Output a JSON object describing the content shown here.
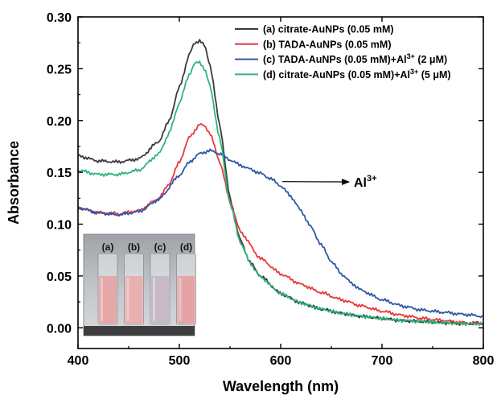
{
  "chart_data": {
    "type": "line",
    "xlabel": "Wavelength (nm)",
    "ylabel": "Absorbance",
    "xlim": [
      400,
      800
    ],
    "ylim": [
      -0.02,
      0.3
    ],
    "xticks": [
      400,
      500,
      600,
      700,
      800
    ],
    "yticks": [
      0.0,
      0.05,
      0.1,
      0.15,
      0.2,
      0.25,
      0.3
    ],
    "xtick_labels": [
      "400",
      "500",
      "600",
      "700",
      "800"
    ],
    "ytick_labels": [
      "0.00",
      "0.05",
      "0.10",
      "0.15",
      "0.20",
      "0.25",
      "0.30"
    ],
    "legend_position": "top-right",
    "series": [
      {
        "name": "(a) citrate-AuNPs (0.05 mM)",
        "color": "#3a3a3a",
        "x": [
          400,
          420,
          440,
          460,
          480,
          490,
          500,
          510,
          515,
          520,
          525,
          530,
          540,
          550,
          560,
          570,
          580,
          600,
          620,
          640,
          660,
          680,
          700,
          720,
          740,
          760,
          780,
          800
        ],
        "y": [
          0.166,
          0.161,
          0.16,
          0.163,
          0.18,
          0.2,
          0.232,
          0.264,
          0.275,
          0.277,
          0.272,
          0.255,
          0.195,
          0.125,
          0.085,
          0.063,
          0.05,
          0.033,
          0.024,
          0.018,
          0.014,
          0.011,
          0.009,
          0.007,
          0.006,
          0.005,
          0.004,
          0.004
        ]
      },
      {
        "name": "(b) TADA-AuNPs (0.05 mM)",
        "color": "#e8383d",
        "x": [
          400,
          420,
          440,
          460,
          480,
          490,
          500,
          510,
          520,
          525,
          530,
          540,
          550,
          560,
          580,
          600,
          620,
          640,
          660,
          680,
          700,
          720,
          740,
          760,
          780,
          800
        ],
        "y": [
          0.116,
          0.111,
          0.11,
          0.113,
          0.125,
          0.139,
          0.16,
          0.184,
          0.196,
          0.195,
          0.188,
          0.16,
          0.122,
          0.093,
          0.067,
          0.052,
          0.042,
          0.034,
          0.027,
          0.021,
          0.016,
          0.012,
          0.009,
          0.007,
          0.005,
          0.004
        ]
      },
      {
        "name": "(c) TADA-AuNPs (0.05 mM)+Al3+ (2 μM)",
        "legend_main": "(c) TADA-AuNPs (0.05 mM)+Al",
        "legend_sup": "3+",
        "legend_tail": " (2 μM)",
        "color": "#2f56a8",
        "x": [
          400,
          420,
          440,
          460,
          480,
          500,
          510,
          520,
          530,
          540,
          550,
          560,
          570,
          580,
          590,
          600,
          610,
          620,
          630,
          640,
          650,
          660,
          670,
          680,
          700,
          720,
          740,
          760,
          780,
          800
        ],
        "y": [
          0.116,
          0.111,
          0.109,
          0.112,
          0.124,
          0.147,
          0.16,
          0.168,
          0.171,
          0.168,
          0.162,
          0.157,
          0.153,
          0.149,
          0.144,
          0.137,
          0.127,
          0.113,
          0.097,
          0.08,
          0.064,
          0.052,
          0.043,
          0.036,
          0.027,
          0.021,
          0.017,
          0.015,
          0.013,
          0.011
        ]
      },
      {
        "name": "(d) citrate-AuNPs (0.05 mM)+Al3+ (5 μM)",
        "legend_main": "(d) citrate-AuNPs (0.05 mM)+Al",
        "legend_sup": "3+",
        "legend_tail": " (5 μM)",
        "color": "#2fb57a",
        "x": [
          400,
          420,
          440,
          460,
          480,
          490,
          500,
          510,
          515,
          520,
          525,
          530,
          540,
          550,
          560,
          570,
          580,
          600,
          620,
          640,
          660,
          680,
          700,
          720,
          740,
          760,
          780,
          800
        ],
        "y": [
          0.152,
          0.148,
          0.148,
          0.152,
          0.168,
          0.188,
          0.217,
          0.245,
          0.255,
          0.256,
          0.25,
          0.234,
          0.182,
          0.12,
          0.083,
          0.062,
          0.049,
          0.033,
          0.024,
          0.018,
          0.014,
          0.011,
          0.009,
          0.007,
          0.006,
          0.005,
          0.004,
          0.004
        ]
      }
    ],
    "annotation": {
      "text": "Al",
      "sup": "3+",
      "arrow_from_x": 600,
      "arrow_from_y": 0.141
    },
    "inset": {
      "vial_labels": [
        "(a)",
        "(b)",
        "(c)",
        "(d)"
      ],
      "vial_colors": [
        "#e6a7a8",
        "#e9aeae",
        "#c7b9c6",
        "#e4a4a5"
      ],
      "background": "#b8bcc0"
    }
  }
}
